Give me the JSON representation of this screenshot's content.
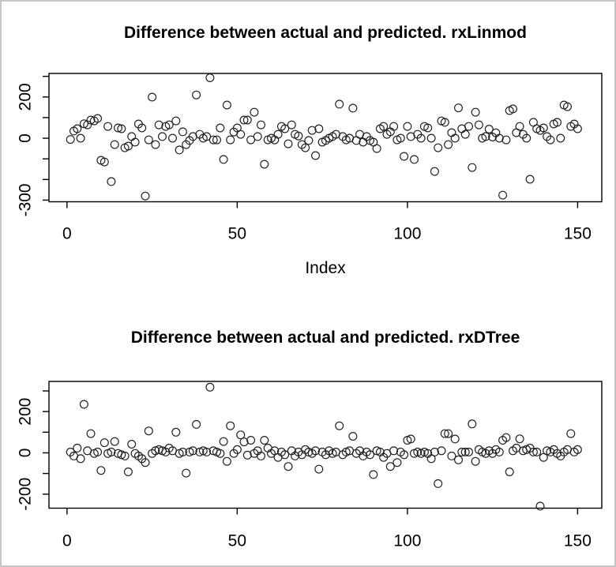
{
  "window": {
    "background": "#ffffff",
    "border_color": "#c6c6c6",
    "foreground": "#000000",
    "marker_color": "#222222"
  },
  "chart_data": [
    {
      "type": "scatter",
      "title": "Difference between actual and predicted. rxLinmod",
      "xlabel": "Index",
      "ylabel": "",
      "marker": "open-circle",
      "grid": false,
      "legend": "none",
      "x_rule": "x values are the sequential index 1..150",
      "xlim": [
        -5.3,
        157.1
      ],
      "ylim": [
        -308,
        314
      ],
      "x_ticks": {
        "values": [
          0,
          50,
          100,
          150
        ],
        "labels": [
          "0",
          "50",
          "100",
          "150"
        ]
      },
      "y_ticks": {
        "values": [
          300,
          200,
          100,
          0,
          -100,
          -200,
          -300
        ],
        "labels": [
          "",
          "200",
          "",
          "0",
          "",
          "",
          "-300"
        ]
      },
      "values": [
        -6,
        35,
        46,
        0,
        70,
        65,
        88,
        84,
        96,
        -107,
        -115,
        57,
        -210,
        -31,
        50,
        46,
        -46,
        -38,
        8,
        -19,
        69,
        50,
        -280,
        -8,
        199,
        -31,
        65,
        8,
        57,
        65,
        0,
        84,
        -57,
        31,
        -31,
        -11,
        8,
        210,
        19,
        0,
        8,
        293,
        -8,
        -8,
        50,
        -103,
        161,
        -8,
        30,
        50,
        19,
        88,
        88,
        -8,
        126,
        8,
        65,
        -126,
        -8,
        0,
        -8,
        19,
        57,
        46,
        -27,
        65,
        19,
        11,
        -31,
        -46,
        -11,
        38,
        -84,
        46,
        -19,
        -11,
        0,
        8,
        19,
        165,
        8,
        -8,
        0,
        146,
        -11,
        19,
        -19,
        8,
        -11,
        -19,
        -50,
        46,
        57,
        19,
        31,
        57,
        -8,
        0,
        -88,
        57,
        8,
        -103,
        19,
        0,
        57,
        50,
        0,
        -161,
        -46,
        84,
        77,
        -31,
        27,
        0,
        147,
        46,
        19,
        57,
        -142,
        126,
        65,
        0,
        8,
        44,
        6,
        26,
        0,
        -276,
        -8,
        134,
        142,
        27,
        57,
        19,
        0,
        -199,
        77,
        46,
        38,
        50,
        8,
        -8,
        69,
        77,
        0,
        161,
        153,
        57,
        69,
        46
      ]
    },
    {
      "type": "scatter",
      "title": "Difference between actual and predicted. rxDTree",
      "xlabel": "",
      "ylabel": "",
      "marker": "open-circle",
      "grid": false,
      "legend": "none",
      "x_rule": "x values are the sequential index 1..150",
      "xlim": [
        -5.3,
        157.1
      ],
      "ylim": [
        -268,
        346
      ],
      "x_ticks": {
        "values": [
          0,
          50,
          100,
          150
        ],
        "labels": [
          "0",
          "50",
          "100",
          "150"
        ]
      },
      "y_ticks": {
        "values": [
          300,
          200,
          100,
          0,
          -100,
          -200
        ],
        "labels": [
          "",
          "200",
          "",
          "0",
          "",
          "-200"
        ]
      },
      "values": [
        4,
        -15,
        23,
        -28,
        235,
        10,
        93,
        -3,
        4,
        -85,
        49,
        -3,
        4,
        55,
        -3,
        -9,
        -15,
        -92,
        42,
        -3,
        -15,
        -28,
        -47,
        106,
        -3,
        10,
        16,
        10,
        4,
        23,
        10,
        100,
        -3,
        4,
        -98,
        4,
        10,
        138,
        4,
        10,
        4,
        318,
        10,
        4,
        -3,
        55,
        -41,
        131,
        -3,
        16,
        87,
        53,
        -11,
        61,
        -3,
        10,
        -15,
        61,
        23,
        -3,
        10,
        -22,
        4,
        -9,
        -66,
        10,
        -15,
        4,
        -9,
        16,
        4,
        -3,
        10,
        -79,
        4,
        -9,
        10,
        -3,
        4,
        131,
        -9,
        4,
        10,
        80,
        -3,
        10,
        -15,
        4,
        -9,
        -105,
        10,
        4,
        -22,
        -3,
        -66,
        10,
        -47,
        4,
        -9,
        61,
        67,
        -3,
        4,
        -3,
        4,
        -3,
        -28,
        4,
        -149,
        10,
        93,
        93,
        -15,
        67,
        -34,
        4,
        4,
        4,
        140,
        -41,
        16,
        4,
        -3,
        10,
        -3,
        16,
        4,
        61,
        74,
        -92,
        10,
        23,
        68,
        10,
        16,
        23,
        4,
        4,
        -258,
        -22,
        10,
        4,
        16,
        -3,
        -15,
        4,
        16,
        93,
        4,
        16
      ]
    }
  ]
}
